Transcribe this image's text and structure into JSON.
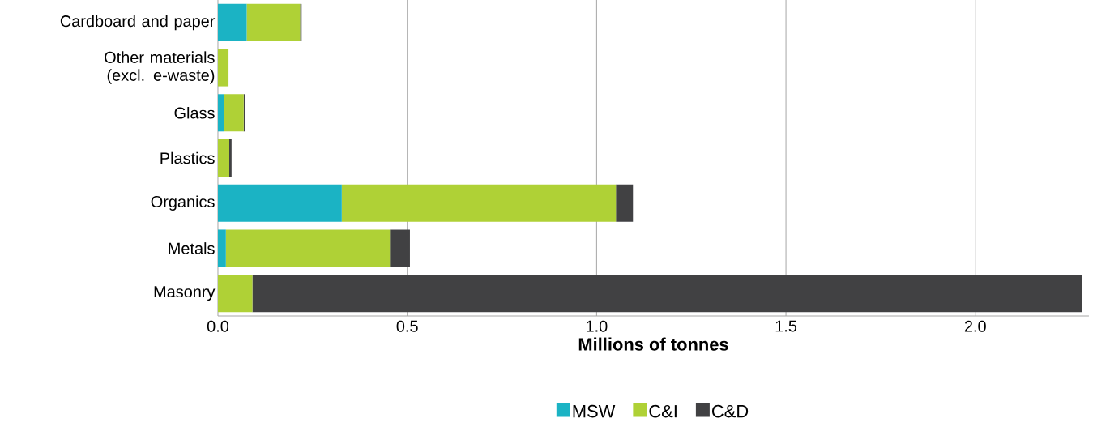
{
  "chart_data": {
    "type": "bar",
    "orientation": "horizontal",
    "stacked": true,
    "categories": [
      "Cardboard and paper",
      "Other materials (excl. e-waste)",
      "Glass",
      "Plastics",
      "Organics",
      "Metals",
      "Masonry"
    ],
    "series": [
      {
        "name": "MSW",
        "color": "#1bb3c4",
        "values": [
          0.076,
          0,
          0.015,
          0,
          0.327,
          0.021,
          0
        ]
      },
      {
        "name": "C&I",
        "color": "#afd136",
        "values": [
          0.141,
          0.028,
          0.053,
          0.03,
          0.724,
          0.433,
          0.091
        ]
      },
      {
        "name": "C&D",
        "color": "#414143",
        "values": [
          0.004,
          0,
          0.004,
          0.006,
          0.045,
          0.053,
          2.19
        ]
      }
    ],
    "xlabel": "Millions of tonnes",
    "xlim": [
      0,
      2.3
    ],
    "xticks": [
      {
        "value": 0,
        "label": "0.0"
      },
      {
        "value": 0.5,
        "label": "0.5"
      },
      {
        "value": 1,
        "label": "1.0"
      },
      {
        "value": 1.5,
        "label": "1.5"
      },
      {
        "value": 2,
        "label": "2.0"
      }
    ],
    "grid": "x",
    "legend": "bottom"
  }
}
